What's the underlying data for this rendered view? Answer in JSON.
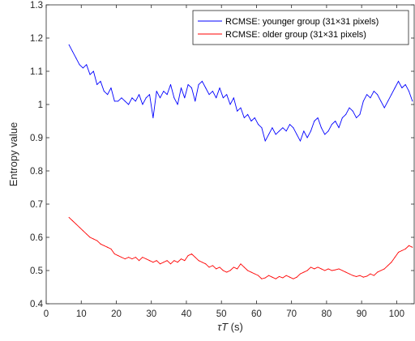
{
  "chart_data": {
    "type": "line",
    "xlabel_italic": "τT",
    "xlabel_unit": " (s)",
    "ylabel": "Entropy value",
    "xlim": [
      0,
      105
    ],
    "ylim": [
      0.4,
      1.3
    ],
    "xticks": [
      0,
      10,
      20,
      30,
      40,
      50,
      60,
      70,
      80,
      90,
      100
    ],
    "xtick_labels": [
      "0",
      "10",
      "20",
      "30",
      "40",
      "50",
      "60",
      "70",
      "80",
      "90",
      "100"
    ],
    "yticks": [
      0.4,
      0.5,
      0.6,
      0.7,
      0.8,
      0.9,
      1.0,
      1.1,
      1.2,
      1.3
    ],
    "ytick_labels": [
      "0.4",
      "0.5",
      "0.6",
      "0.7",
      "0.8",
      "0.9",
      "1",
      "1.1",
      "1.2",
      "1.3"
    ],
    "grid": false,
    "legend_position": "top-right",
    "series": [
      {
        "name": "RCMSE: younger group (31×31 pixels)",
        "color": "#0000ff",
        "x": [
          6.5,
          7.5,
          8.5,
          9.5,
          10.5,
          11.5,
          12.5,
          13.5,
          14.5,
          15.5,
          16.5,
          17.5,
          18.5,
          19.5,
          20.5,
          21.5,
          22.5,
          23.5,
          24.5,
          25.5,
          26.5,
          27.5,
          28.5,
          29.5,
          30.5,
          31.5,
          32.5,
          33.5,
          34.5,
          35.5,
          36.5,
          37.5,
          38.5,
          39.5,
          40.5,
          41.5,
          42.5,
          43.5,
          44.5,
          45.5,
          46.5,
          47.5,
          48.5,
          49.5,
          50.5,
          51.5,
          52.5,
          53.5,
          54.5,
          55.5,
          56.5,
          57.5,
          58.5,
          59.5,
          60.5,
          61.5,
          62.5,
          63.5,
          64.5,
          65.5,
          66.5,
          67.5,
          68.5,
          69.5,
          70.5,
          71.5,
          72.5,
          73.5,
          74.5,
          75.5,
          76.5,
          77.5,
          78.5,
          79.5,
          80.5,
          81.5,
          82.5,
          83.5,
          84.5,
          85.5,
          86.5,
          87.5,
          88.5,
          89.5,
          90.5,
          91.5,
          92.5,
          93.5,
          94.5,
          95.5,
          96.5,
          97.5,
          98.5,
          99.5,
          100.5,
          101.5,
          102.5,
          103.5,
          104.5
        ],
        "values": [
          1.18,
          1.16,
          1.14,
          1.12,
          1.11,
          1.12,
          1.09,
          1.1,
          1.06,
          1.07,
          1.04,
          1.03,
          1.05,
          1.01,
          1.01,
          1.02,
          1.01,
          1.0,
          1.02,
          1.01,
          1.03,
          1.0,
          1.02,
          1.03,
          0.96,
          1.04,
          1.02,
          1.04,
          1.03,
          1.06,
          1.02,
          1.0,
          1.05,
          1.02,
          1.06,
          1.05,
          1.01,
          1.06,
          1.07,
          1.05,
          1.03,
          1.04,
          1.02,
          1.05,
          1.02,
          1.03,
          1.0,
          1.02,
          0.98,
          0.99,
          0.96,
          0.97,
          0.95,
          0.96,
          0.94,
          0.93,
          0.89,
          0.91,
          0.93,
          0.91,
          0.92,
          0.93,
          0.92,
          0.94,
          0.93,
          0.91,
          0.89,
          0.92,
          0.9,
          0.92,
          0.95,
          0.96,
          0.93,
          0.91,
          0.92,
          0.94,
          0.95,
          0.93,
          0.96,
          0.97,
          0.99,
          0.98,
          0.96,
          0.97,
          1.01,
          1.03,
          1.02,
          1.04,
          1.03,
          1.01,
          0.99,
          1.01,
          1.03,
          1.05,
          1.07,
          1.05,
          1.06,
          1.04,
          1.01
        ]
      },
      {
        "name": "RCMSE: older group (31×31 pixels)",
        "color": "#ff0000",
        "x": [
          6.5,
          7.5,
          8.5,
          9.5,
          10.5,
          11.5,
          12.5,
          13.5,
          14.5,
          15.5,
          16.5,
          17.5,
          18.5,
          19.5,
          20.5,
          21.5,
          22.5,
          23.5,
          24.5,
          25.5,
          26.5,
          27.5,
          28.5,
          29.5,
          30.5,
          31.5,
          32.5,
          33.5,
          34.5,
          35.5,
          36.5,
          37.5,
          38.5,
          39.5,
          40.5,
          41.5,
          42.5,
          43.5,
          44.5,
          45.5,
          46.5,
          47.5,
          48.5,
          49.5,
          50.5,
          51.5,
          52.5,
          53.5,
          54.5,
          55.5,
          56.5,
          57.5,
          58.5,
          59.5,
          60.5,
          61.5,
          62.5,
          63.5,
          64.5,
          65.5,
          66.5,
          67.5,
          68.5,
          69.5,
          70.5,
          71.5,
          72.5,
          73.5,
          74.5,
          75.5,
          76.5,
          77.5,
          78.5,
          79.5,
          80.5,
          81.5,
          82.5,
          83.5,
          84.5,
          85.5,
          86.5,
          87.5,
          88.5,
          89.5,
          90.5,
          91.5,
          92.5,
          93.5,
          94.5,
          95.5,
          96.5,
          97.5,
          98.5,
          99.5,
          100.5,
          101.5,
          102.5,
          103.5,
          104.5
        ],
        "values": [
          0.66,
          0.65,
          0.64,
          0.63,
          0.62,
          0.61,
          0.6,
          0.595,
          0.59,
          0.58,
          0.575,
          0.57,
          0.565,
          0.55,
          0.545,
          0.54,
          0.535,
          0.54,
          0.535,
          0.54,
          0.53,
          0.54,
          0.535,
          0.53,
          0.525,
          0.53,
          0.52,
          0.525,
          0.53,
          0.52,
          0.53,
          0.525,
          0.535,
          0.53,
          0.545,
          0.55,
          0.54,
          0.53,
          0.525,
          0.52,
          0.51,
          0.515,
          0.505,
          0.51,
          0.5,
          0.495,
          0.5,
          0.51,
          0.505,
          0.52,
          0.51,
          0.5,
          0.495,
          0.49,
          0.485,
          0.475,
          0.478,
          0.485,
          0.48,
          0.475,
          0.482,
          0.478,
          0.485,
          0.48,
          0.475,
          0.48,
          0.49,
          0.495,
          0.5,
          0.51,
          0.505,
          0.51,
          0.505,
          0.5,
          0.505,
          0.5,
          0.502,
          0.505,
          0.5,
          0.495,
          0.49,
          0.485,
          0.482,
          0.485,
          0.48,
          0.483,
          0.49,
          0.485,
          0.495,
          0.5,
          0.505,
          0.515,
          0.525,
          0.54,
          0.555,
          0.56,
          0.565,
          0.575,
          0.57
        ]
      }
    ]
  }
}
